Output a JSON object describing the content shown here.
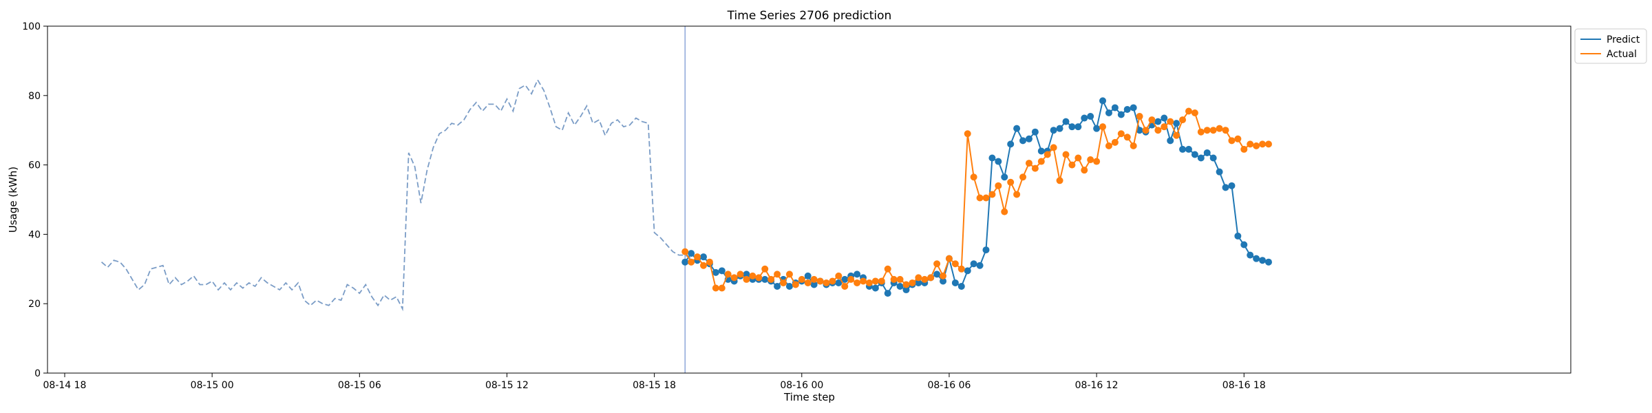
{
  "chart_data": {
    "type": "line",
    "title": "Time Series 2706 prediction",
    "xlabel": "Time step",
    "ylabel": "Usage (kWh)",
    "ylim": [
      0,
      100
    ],
    "xlim_hours": [
      -6.7,
      55.3
    ],
    "x_unit": "hours from 08-15 00:00",
    "x_ticks": [
      {
        "label": "08-14 18",
        "hours": -6
      },
      {
        "label": "08-15 00",
        "hours": 0
      },
      {
        "label": "08-15 06",
        "hours": 6
      },
      {
        "label": "08-15 12",
        "hours": 12
      },
      {
        "label": "08-15 18",
        "hours": 18
      },
      {
        "label": "08-16 00",
        "hours": 24
      },
      {
        "label": "08-16 06",
        "hours": 30
      },
      {
        "label": "08-16 12",
        "hours": 36
      },
      {
        "label": "08-16 18",
        "hours": 42
      }
    ],
    "y_ticks": [
      0,
      20,
      40,
      60,
      80,
      100
    ],
    "grid": false,
    "legend": {
      "placement": "top-right",
      "entries": [
        {
          "name": "Predict",
          "color": "#1f77b4"
        },
        {
          "name": "Actual",
          "color": "#ff7f0e"
        }
      ]
    },
    "forecast_start_hours": 19.25,
    "history": {
      "start_hours": -4.5,
      "step_hours": 0.25,
      "color": "#7a9cc6",
      "values": [
        32.0,
        30.5,
        32.5,
        32.0,
        30.0,
        27.0,
        24.0,
        25.5,
        30.0,
        30.5,
        31.0,
        25.5,
        27.5,
        25.5,
        26.5,
        28.0,
        25.5,
        25.5,
        26.5,
        24.0,
        26.0,
        24.0,
        26.0,
        24.5,
        26.0,
        25.0,
        27.5,
        26.0,
        25.0,
        24.0,
        26.0,
        24.0,
        26.0,
        21.0,
        19.5,
        21.0,
        20.0,
        19.5,
        21.5,
        21.0,
        25.5,
        24.5,
        23.0,
        25.5,
        22.0,
        19.5,
        22.5,
        21.0,
        22.0,
        18.5,
        63.5,
        59.5,
        49.0,
        58.5,
        65.0,
        69.0,
        70.0,
        72.0,
        71.5,
        73.0,
        76.0,
        78.0,
        75.5,
        77.5,
        77.5,
        75.5,
        79.0,
        75.5,
        82.0,
        83.0,
        80.5,
        84.5,
        81.5,
        76.5,
        71.0,
        70.0,
        75.0,
        71.5,
        74.0,
        77.0,
        72.0,
        73.0,
        68.5,
        72.0,
        73.0,
        71.0,
        71.5,
        73.5,
        72.5,
        72.0,
        40.5,
        39.0,
        37.0,
        35.0,
        34.0,
        34.0,
        33.0
      ]
    },
    "series": [
      {
        "name": "Predict",
        "color": "#1f77b4",
        "start_hours": 19.25,
        "step_hours": 0.25,
        "values": [
          32.0,
          34.5,
          32.5,
          33.5,
          31.5,
          29.0,
          29.5,
          27.0,
          26.5,
          28.0,
          28.5,
          27.0,
          27.0,
          27.0,
          26.5,
          25.0,
          27.0,
          25.0,
          26.0,
          26.5,
          28.0,
          25.5,
          26.5,
          25.5,
          26.0,
          26.0,
          27.0,
          28.0,
          28.5,
          27.5,
          25.0,
          24.5,
          26.0,
          23.0,
          26.0,
          25.0,
          24.0,
          25.5,
          26.0,
          26.0,
          27.5,
          28.5,
          26.5,
          33.0,
          26.0,
          25.0,
          29.5,
          31.5,
          31.0,
          35.5,
          62.0,
          61.0,
          56.5,
          66.0,
          70.5,
          67.0,
          67.5,
          69.5,
          64.0,
          64.0,
          70.0,
          70.5,
          72.5,
          71.0,
          71.0,
          73.5,
          74.0,
          70.5,
          78.5,
          75.0,
          76.5,
          74.5,
          76.0,
          76.5,
          70.0,
          69.5,
          71.5,
          72.5,
          73.5,
          67.0,
          72.0,
          64.5,
          64.5,
          63.0,
          62.0,
          63.5,
          62.0,
          58.0,
          53.5,
          54.0,
          39.5,
          37.0,
          34.0,
          33.0,
          32.5,
          32.0
        ]
      },
      {
        "name": "Actual",
        "color": "#ff7f0e",
        "start_hours": 19.25,
        "step_hours": 0.25,
        "values": [
          35.0,
          32.0,
          33.5,
          31.0,
          32.0,
          24.5,
          24.5,
          28.5,
          27.5,
          28.5,
          27.0,
          28.0,
          27.5,
          30.0,
          27.0,
          28.5,
          26.0,
          28.5,
          25.5,
          27.0,
          26.0,
          27.0,
          26.5,
          26.0,
          26.5,
          28.0,
          25.0,
          27.0,
          26.0,
          26.5,
          26.0,
          26.5,
          26.5,
          30.0,
          27.0,
          27.0,
          25.5,
          26.0,
          27.5,
          27.0,
          27.5,
          31.5,
          28.0,
          33.0,
          31.5,
          30.0,
          69.0,
          56.5,
          50.5,
          50.5,
          51.5,
          54.0,
          46.5,
          55.0,
          51.5,
          56.5,
          60.5,
          59.0,
          61.0,
          63.0,
          65.0,
          55.5,
          63.0,
          60.0,
          62.0,
          58.5,
          61.5,
          61.0,
          71.0,
          65.5,
          66.5,
          69.0,
          68.0,
          65.5,
          74.0,
          70.0,
          73.0,
          70.0,
          71.0,
          72.5,
          68.5,
          73.0,
          75.5,
          75.0,
          69.5,
          70.0,
          70.0,
          70.5,
          70.0,
          67.0,
          67.5,
          64.5,
          66.0,
          65.5,
          66.0,
          66.0
        ]
      }
    ]
  }
}
